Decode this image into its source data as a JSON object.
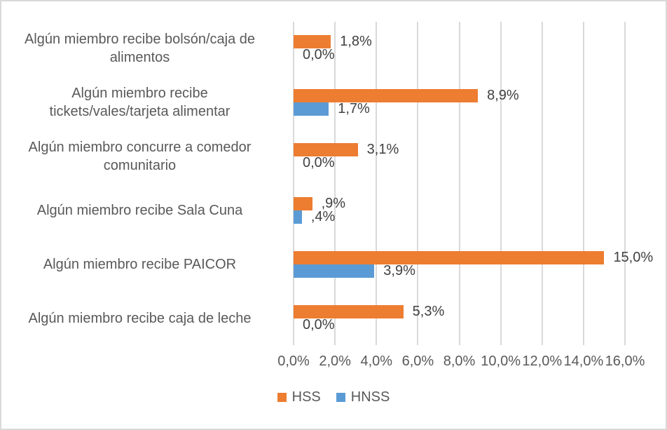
{
  "chart_data": {
    "type": "bar",
    "orientation": "horizontal",
    "title": "",
    "xlabel": "",
    "ylabel": "",
    "xlim": [
      0,
      16
    ],
    "grid": true,
    "legend_position": "bottom",
    "x_ticks": [
      "0,0%",
      "2,0%",
      "4,0%",
      "6,0%",
      "8,0%",
      "10,0%",
      "12,0%",
      "14,0%",
      "16,0%"
    ],
    "categories": [
      {
        "label": "Algún miembro recibe bolsón/caja de alimentos",
        "lines": [
          "Algún miembro recibe bolsón/caja de",
          "alimentos"
        ]
      },
      {
        "label": "Algún miembro recibe tickets/vales/tarjeta alimentar",
        "lines": [
          "Algún miembro recibe",
          "tickets/vales/tarjeta alimentar"
        ]
      },
      {
        "label": "Algún miembro concurre a comedor comunitario",
        "lines": [
          "Algún miembro concurre a comedor",
          "comunitario"
        ]
      },
      {
        "label": "Algún miembro recibe Sala Cuna",
        "lines": [
          "Algún miembro recibe Sala Cuna"
        ]
      },
      {
        "label": "Algún miembro recibe PAICOR",
        "lines": [
          "Algún miembro recibe PAICOR"
        ]
      },
      {
        "label": "Algún miembro recibe caja de leche",
        "lines": [
          "Algún miembro recibe caja de leche"
        ]
      }
    ],
    "series": [
      {
        "name": "HSS",
        "color": "#ED7D31",
        "values": [
          1.8,
          8.9,
          3.1,
          0.9,
          15.0,
          5.3
        ],
        "data_labels": [
          "1,8%",
          "8,9%",
          "3,1%",
          ",9%",
          "15,0%",
          "5,3%"
        ]
      },
      {
        "name": "HNSS",
        "color": "#5B9BD5",
        "values": [
          0.0,
          1.7,
          0.0,
          0.4,
          3.9,
          0.0
        ],
        "data_labels": [
          "0,0%",
          "1,7%",
          "0,0%",
          ",4%",
          "3,9%",
          "0,0%"
        ]
      }
    ]
  },
  "styles": {
    "background": "#FFFFFF",
    "border_color": "#D9D9D9",
    "grid_color": "#D9D9D9",
    "axis_text_color": "#595959",
    "data_label_color": "#404040"
  }
}
